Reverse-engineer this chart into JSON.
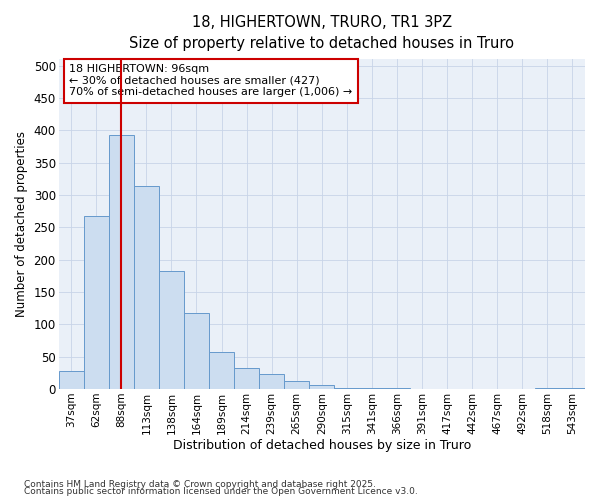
{
  "title_line1": "18, HIGHERTOWN, TRURO, TR1 3PZ",
  "title_line2": "Size of property relative to detached houses in Truro",
  "xlabel": "Distribution of detached houses by size in Truro",
  "ylabel": "Number of detached properties",
  "categories": [
    "37sqm",
    "62sqm",
    "88sqm",
    "113sqm",
    "138sqm",
    "164sqm",
    "189sqm",
    "214sqm",
    "239sqm",
    "265sqm",
    "290sqm",
    "315sqm",
    "341sqm",
    "366sqm",
    "391sqm",
    "417sqm",
    "442sqm",
    "467sqm",
    "492sqm",
    "518sqm",
    "543sqm"
  ],
  "values": [
    28,
    268,
    392,
    314,
    182,
    118,
    58,
    33,
    24,
    13,
    7,
    2,
    1,
    1,
    0,
    0,
    0,
    0,
    0,
    1,
    2
  ],
  "bar_color": "#ccddf0",
  "bar_edge_color": "#6699cc",
  "grid_color": "#c8d4e8",
  "background_color": "#eaf0f8",
  "red_line_x": 2.5,
  "annotation_title": "18 HIGHERTOWN: 96sqm",
  "annotation_line2": "← 30% of detached houses are smaller (427)",
  "annotation_line3": "70% of semi-detached houses are larger (1,006) →",
  "annotation_box_facecolor": "#ffffff",
  "annotation_box_edgecolor": "#cc0000",
  "red_line_color": "#cc0000",
  "ylim": [
    0,
    510
  ],
  "yticks": [
    0,
    50,
    100,
    150,
    200,
    250,
    300,
    350,
    400,
    450,
    500
  ],
  "footnote_line1": "Contains HM Land Registry data © Crown copyright and database right 2025.",
  "footnote_line2": "Contains public sector information licensed under the Open Government Licence v3.0."
}
